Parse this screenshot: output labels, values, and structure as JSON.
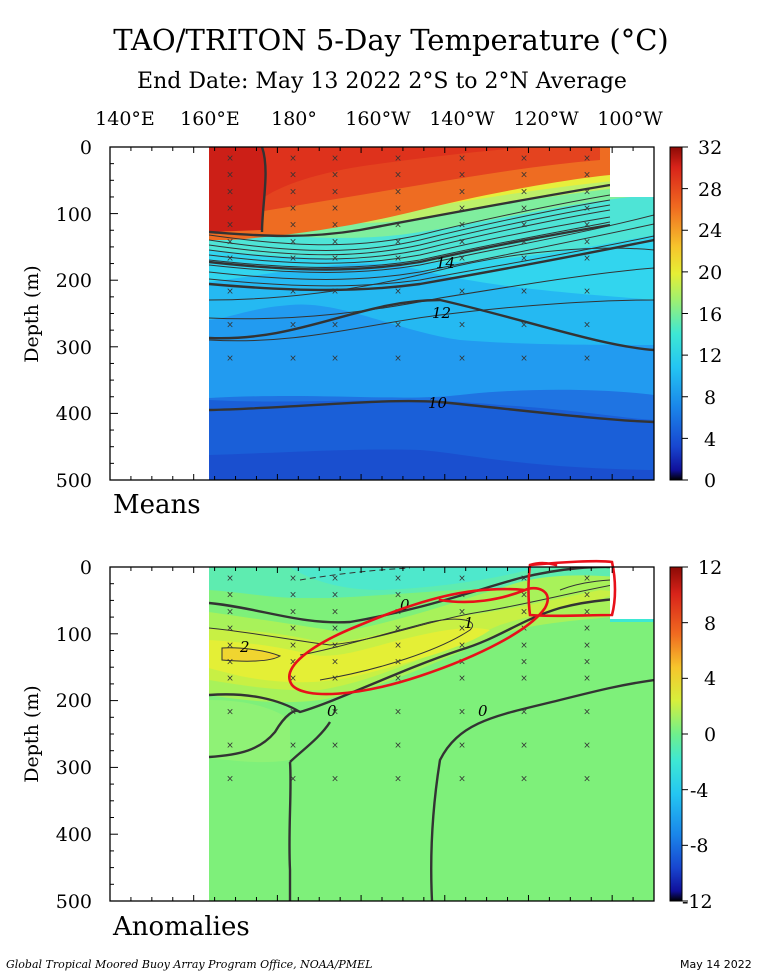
{
  "title": "TAO/TRITON 5-Day Temperature (°C)",
  "subtitle": "End Date: May 13 2022  2°S to 2°N Average",
  "lon_labels": [
    "140°E",
    "160°E",
    "180°",
    "160°W",
    "140°W",
    "120°W",
    "100°W"
  ],
  "footer_left": "Global Tropical Moored Buoy Array Program Office, NOAA/PMEL",
  "footer_right": "May 14 2022",
  "chart_data": [
    {
      "type": "heatmap",
      "name": "Means",
      "ylabel": "Depth (m)",
      "x": [
        "140°E",
        "160°E",
        "180°",
        "160°W",
        "140°W",
        "120°W",
        "100°W"
      ],
      "y_ticks": [
        0,
        100,
        200,
        300,
        400,
        500
      ],
      "ylim": [
        0,
        500
      ],
      "colorbar_ticks": [
        32,
        28,
        24,
        20,
        16,
        12,
        8,
        4,
        0
      ],
      "colorbar_range": [
        0,
        32
      ],
      "contour_labels": [
        "14",
        "12",
        "10"
      ],
      "contour_levels_c": [
        10,
        12,
        14,
        16,
        18,
        20,
        22,
        24,
        26,
        28
      ],
      "mixed_layer_temp_c": 29,
      "thermocline_depth_m": {
        "160°E": 190,
        "180°": 180,
        "160°W": 150,
        "140°W": 110,
        "120°W": 60,
        "100°W": 30
      }
    },
    {
      "type": "heatmap",
      "name": "Anomalies",
      "ylabel": "Depth (m)",
      "x": [
        "140°E",
        "160°E",
        "180°",
        "160°W",
        "140°W",
        "120°W",
        "100°W"
      ],
      "y_ticks": [
        0,
        100,
        200,
        300,
        400,
        500
      ],
      "ylim": [
        0,
        500
      ],
      "colorbar_ticks": [
        12,
        8,
        4,
        0,
        -4,
        -8,
        -12
      ],
      "colorbar_range": [
        -12,
        12
      ],
      "contour_labels": [
        "2",
        "0",
        "1",
        "0",
        "0"
      ],
      "max_anomaly_c": 2,
      "annotations": [
        "red freehand loop around warm anomaly tongue (160°W–120°W, 50–190 m)",
        "red freehand box near 100°W, 0–70 m"
      ]
    }
  ],
  "colors": {
    "annotation_red": "#e8101a",
    "contour": "#333333"
  }
}
